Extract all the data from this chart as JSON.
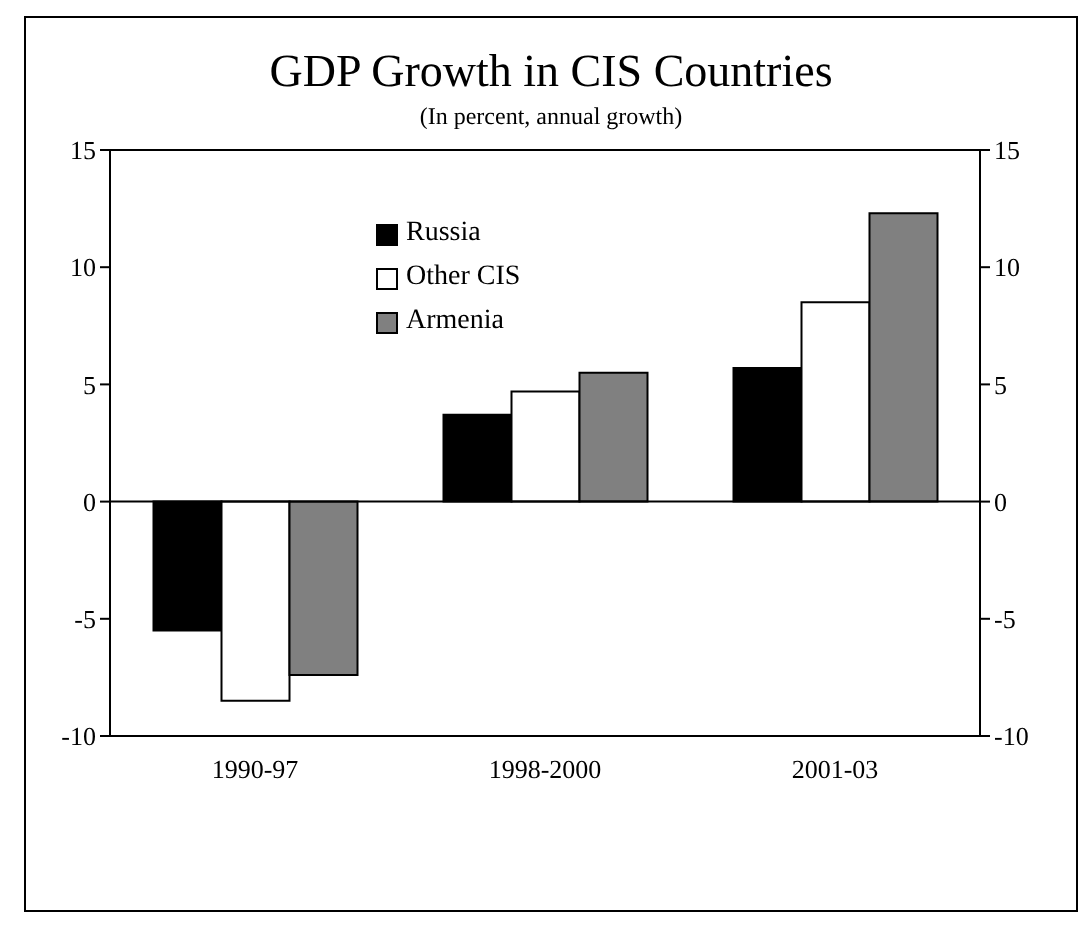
{
  "chart_data": {
    "type": "bar",
    "title": "GDP Growth in CIS Countries",
    "subtitle": "(In percent, annual growth)",
    "categories": [
      "1990-97",
      "1998-2000",
      "2001-03"
    ],
    "series": [
      {
        "name": "Russia",
        "color": "#000000",
        "values": [
          -5.5,
          3.7,
          5.7
        ]
      },
      {
        "name": "Other CIS",
        "color": "#ffffff",
        "values": [
          -8.5,
          4.7,
          8.5
        ]
      },
      {
        "name": "Armenia",
        "color": "#808080",
        "values": [
          -7.4,
          5.5,
          12.3
        ]
      }
    ],
    "ylim": [
      -10,
      15
    ],
    "yticks": [
      -10,
      -5,
      0,
      5,
      10,
      15
    ],
    "y2lim": [
      -10,
      15
    ],
    "y2ticks": [
      -10,
      -5,
      0,
      5,
      10,
      15
    ],
    "legend": "top"
  }
}
